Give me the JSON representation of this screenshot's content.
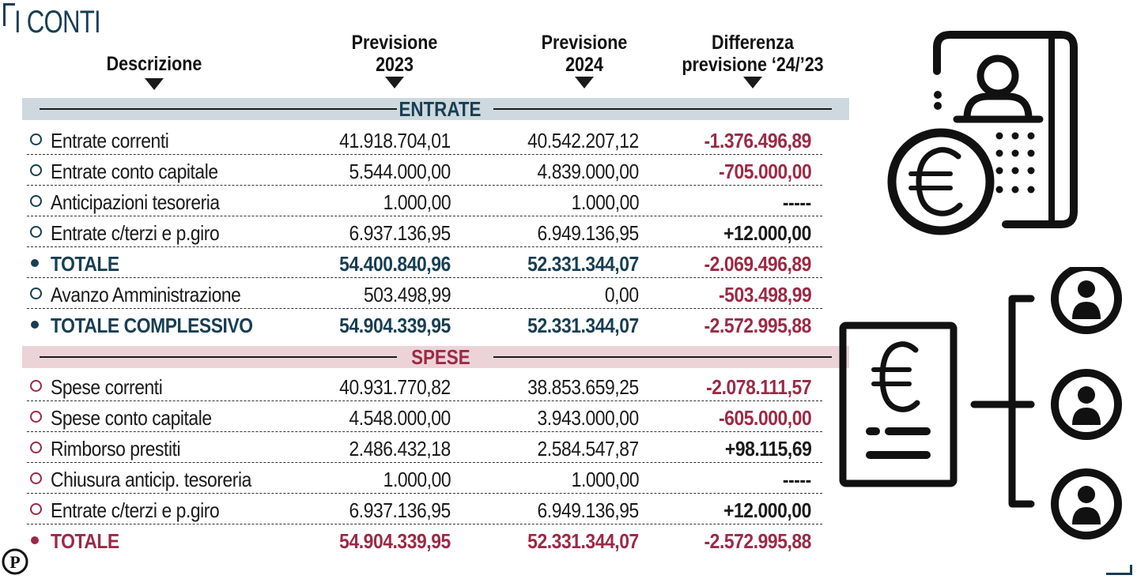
{
  "header": {
    "title": "I CONTI"
  },
  "columns": {
    "descrizione": "Descrizione",
    "prev2023_l1": "Previsione",
    "prev2023_l2": "2023",
    "prev2024_l1": "Previsione",
    "prev2024_l2": "2024",
    "diff_l1": "Differenza",
    "diff_l2": "previsione ‘24/’23"
  },
  "sections": {
    "entrate": {
      "label": "ENTRATE",
      "rows": [
        {
          "desc": "Entrate correnti",
          "v2023": "41.918.704,01",
          "v2024": "40.542.207,12",
          "diff": "-1.376.496,89"
        },
        {
          "desc": "Entrate conto capitale",
          "v2023": "5.544.000,00",
          "v2024": "4.839.000,00",
          "diff": "-705.000,00"
        },
        {
          "desc": "Anticipazioni tesoreria",
          "v2023": "1.000,00",
          "v2024": "1.000,00",
          "diff": "-----"
        },
        {
          "desc": "Entrate c/terzi e p.giro",
          "v2023": "6.937.136,95",
          "v2024": "6.949.136,95",
          "diff": "+12.000,00"
        },
        {
          "desc": "TOTALE",
          "v2023": "54.400.840,96",
          "v2024": "52.331.344,07",
          "diff": "-2.069.496,89"
        },
        {
          "desc": "Avanzo Amministrazione",
          "v2023": "503.498,99",
          "v2024": "0,00",
          "diff": "-503.498,99"
        },
        {
          "desc": "TOTALE COMPLESSIVO",
          "v2023": "54.904.339,95",
          "v2024": "52.331.344,07",
          "diff": "-2.572.995,88"
        }
      ]
    },
    "spese": {
      "label": "SPESE",
      "rows": [
        {
          "desc": "Spese correnti",
          "v2023": "40.931.770,82",
          "v2024": "38.853.659,25",
          "diff": "-2.078.111,57"
        },
        {
          "desc": "Spese conto capitale",
          "v2023": "4.548.000,00",
          "v2024": "3.943.000,00",
          "diff": "-605.000,00"
        },
        {
          "desc": "Rimborso prestiti",
          "v2023": "2.486.432,18",
          "v2024": "2.584.547,87",
          "diff": "+98.115,69"
        },
        {
          "desc": "Chiusura anticip. tesoreria",
          "v2023": "1.000,00",
          "v2024": "1.000,00",
          "diff": "-----"
        },
        {
          "desc": "Entrate c/terzi e p.giro",
          "v2023": "6.937.136,95",
          "v2024": "6.949.136,95",
          "diff": "+12.000,00"
        },
        {
          "desc": "TOTALE",
          "v2023": "54.904.339,95",
          "v2024": "52.331.344,07",
          "diff": "-2.572.995,88"
        }
      ]
    }
  },
  "logo": {
    "letter": "P"
  },
  "colors": {
    "navy": "#183e53",
    "crimson": "#9b2a45",
    "entrate_band": "#cdd9de",
    "spese_band": "#ecd3d8",
    "ink": "#1a1a1a"
  }
}
